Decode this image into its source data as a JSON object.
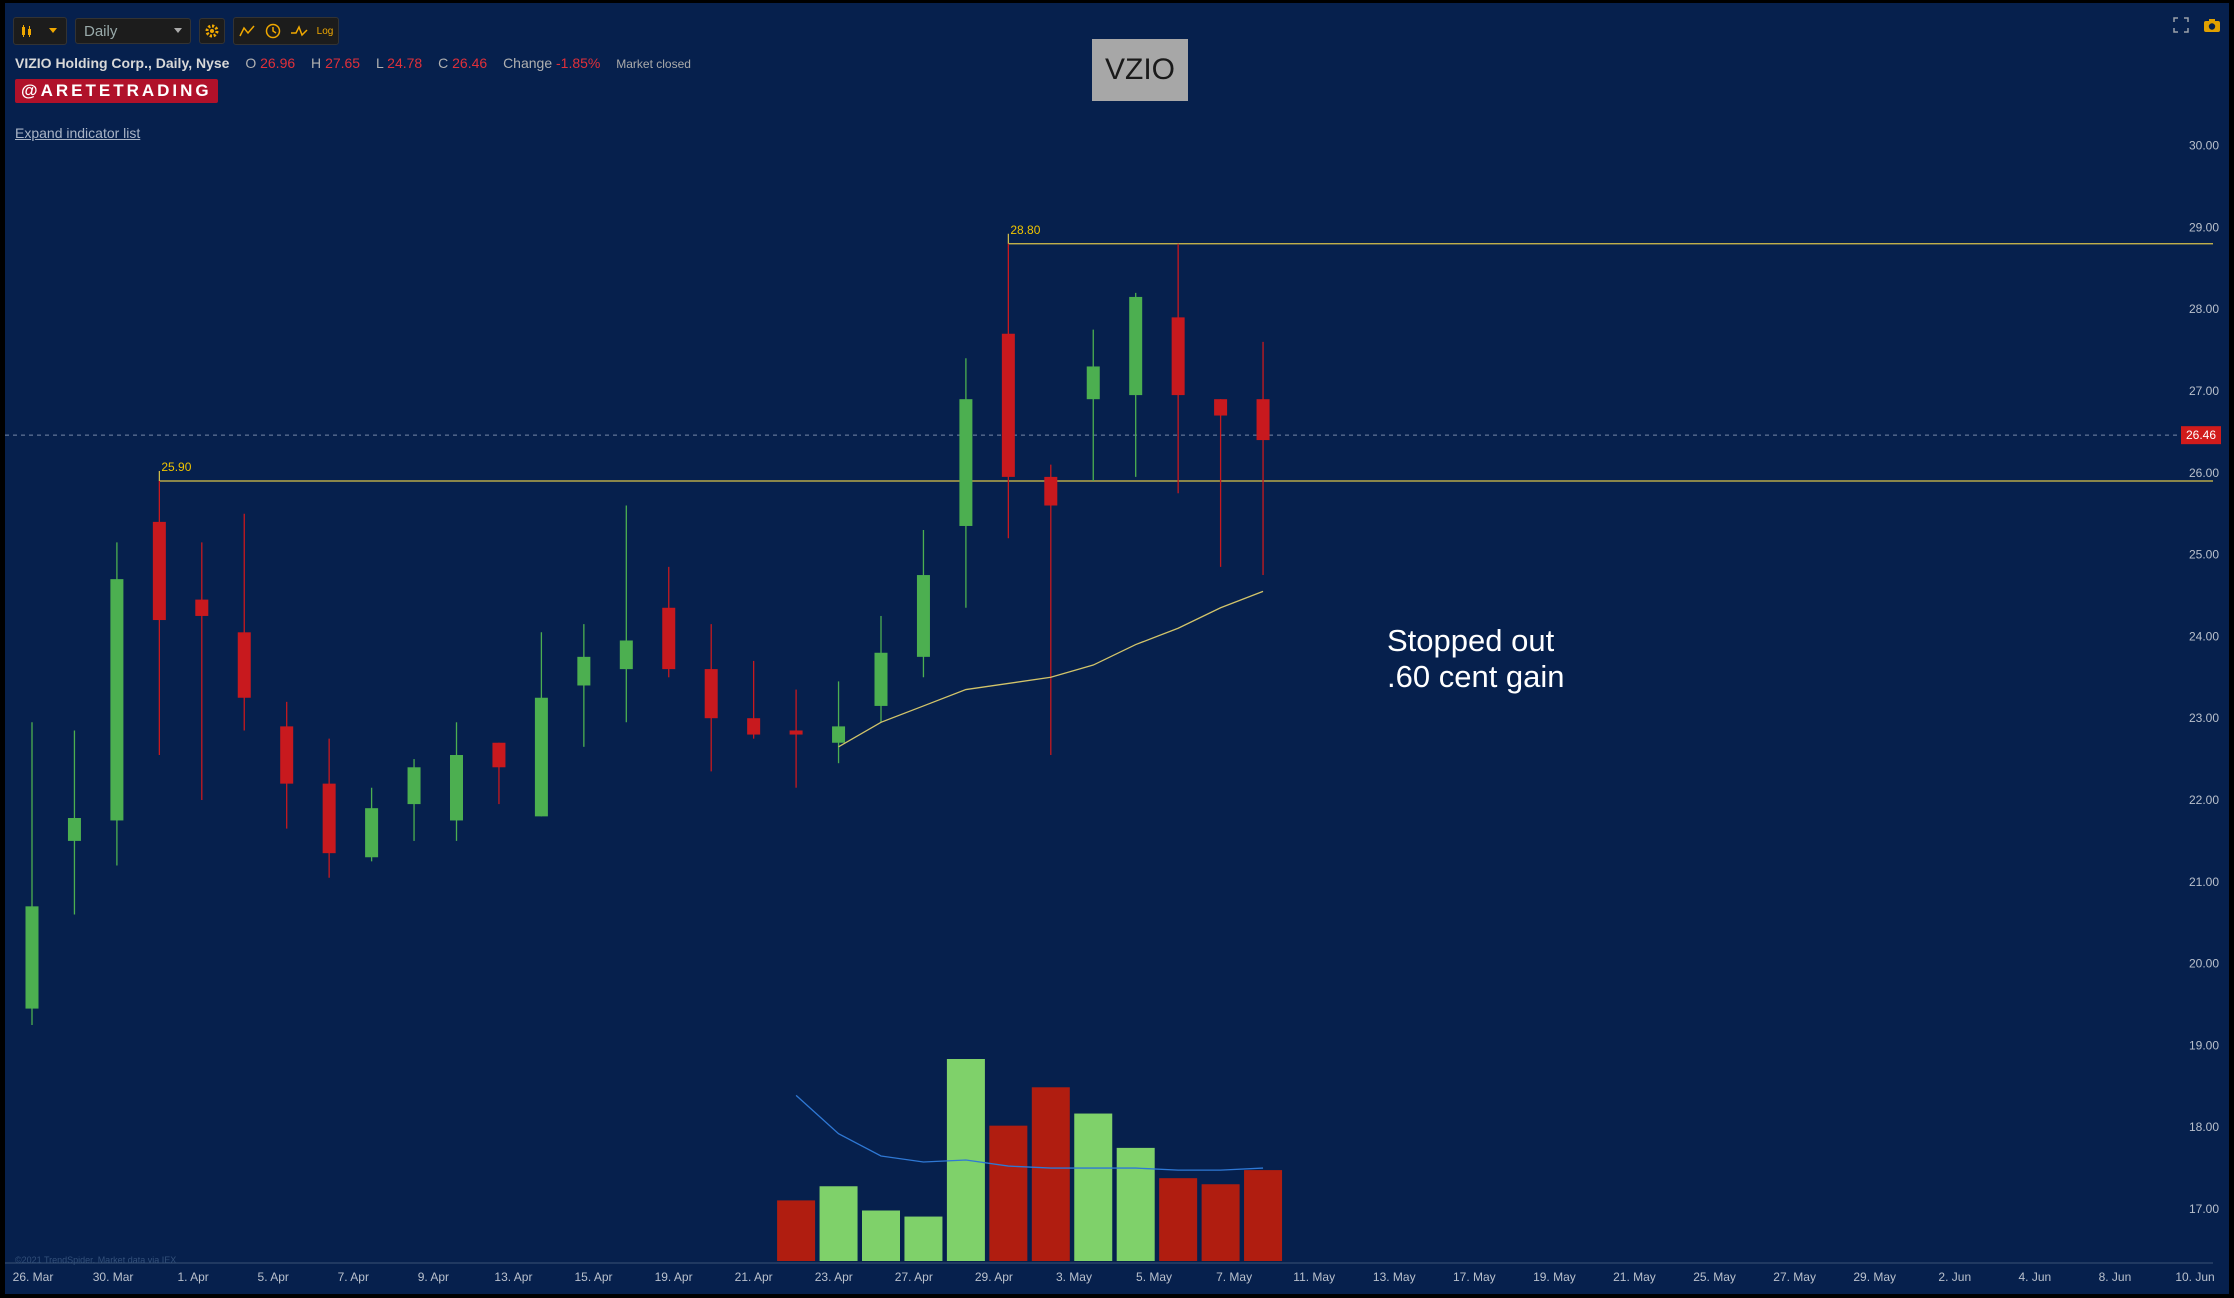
{
  "toolbar": {
    "chart_type_icon": "candlestick-icon",
    "interval_label": "Daily",
    "settings_icon": "gear-icon",
    "indicator_icon": "indicator-icon",
    "clock_icon": "clock-icon",
    "draw_icon": "drawing-tool-icon",
    "log_label": "Log",
    "fullscreen_icon": "fullscreen-icon",
    "camera_icon": "camera-icon"
  },
  "header": {
    "symbol_text": "VIZIO Holding Corp., Daily, Nyse",
    "open_label": "O",
    "open_value": "26.96",
    "high_label": "H",
    "high_value": "27.65",
    "low_label": "L",
    "low_value": "24.78",
    "close_label": "C",
    "close_value": "26.46",
    "change_label": "Change",
    "change_value": "-1.85%",
    "market_status": "Market closed",
    "brand": "@ARETETRADING",
    "expand_link": "Expand indicator list",
    "ticker_box": "VZIO"
  },
  "annotation": "Stopped out\n.60 cent gain",
  "watermark": "©2021 TrendSpider. Market data via IEX",
  "colors": {
    "background": "#06204d",
    "up": "#4caf50",
    "down": "#c8191e",
    "volume_up": "#7fd16a",
    "volume_down": "#b01d10",
    "level_line": "#d9c24a",
    "ma_line": "#d2c46a",
    "volume_ma": "#2f78d4",
    "last_price_tag": "#d11b1b"
  },
  "chart_data": {
    "type": "candlestick",
    "title": "VZIO",
    "ylim": [
      16.3,
      30.5
    ],
    "y_ticks": [
      "17.00",
      "18.00",
      "19.00",
      "20.00",
      "21.00",
      "22.00",
      "23.00",
      "24.00",
      "25.00",
      "26.00",
      "27.00",
      "28.00",
      "29.00",
      "30.00"
    ],
    "x_ticks": [
      "26. Mar",
      "30. Mar",
      "1. Apr",
      "5. Apr",
      "7. Apr",
      "9. Apr",
      "13. Apr",
      "15. Apr",
      "19. Apr",
      "21. Apr",
      "23. Apr",
      "27. Apr",
      "29. Apr",
      "3. May",
      "5. May",
      "7. May",
      "11. May",
      "13. May",
      "17. May",
      "19. May",
      "21. May",
      "25. May",
      "27. May",
      "29. May",
      "2. Jun",
      "4. Jun",
      "8. Jun",
      "10. Jun"
    ],
    "last_price": 26.46,
    "last_price_label": "26.46",
    "levels": [
      {
        "label": "28.80",
        "value": 28.8,
        "start_index": 23
      },
      {
        "label": "25.90",
        "value": 25.9,
        "start_index": 3
      }
    ],
    "candles": [
      {
        "o": 19.45,
        "h": 22.95,
        "l": 19.25,
        "c": 20.7
      },
      {
        "o": 21.5,
        "h": 22.85,
        "l": 20.6,
        "c": 21.78
      },
      {
        "o": 21.75,
        "h": 25.15,
        "l": 21.2,
        "c": 24.7
      },
      {
        "o": 25.4,
        "h": 25.9,
        "l": 22.55,
        "c": 24.2
      },
      {
        "o": 24.45,
        "h": 25.15,
        "l": 22.0,
        "c": 24.25
      },
      {
        "o": 24.05,
        "h": 25.5,
        "l": 22.85,
        "c": 23.25
      },
      {
        "o": 22.9,
        "h": 23.2,
        "l": 21.65,
        "c": 22.2
      },
      {
        "o": 22.2,
        "h": 22.75,
        "l": 21.05,
        "c": 21.35
      },
      {
        "o": 21.3,
        "h": 22.15,
        "l": 21.25,
        "c": 21.9
      },
      {
        "o": 21.95,
        "h": 22.5,
        "l": 21.5,
        "c": 22.4
      },
      {
        "o": 21.75,
        "h": 22.95,
        "l": 21.5,
        "c": 22.55
      },
      {
        "o": 22.7,
        "h": 22.7,
        "l": 21.95,
        "c": 22.4
      },
      {
        "o": 21.8,
        "h": 24.05,
        "l": 21.8,
        "c": 23.25
      },
      {
        "o": 23.4,
        "h": 24.15,
        "l": 22.65,
        "c": 23.75
      },
      {
        "o": 23.6,
        "h": 25.6,
        "l": 22.95,
        "c": 23.95
      },
      {
        "o": 24.35,
        "h": 24.85,
        "l": 23.5,
        "c": 23.6
      },
      {
        "o": 23.6,
        "h": 24.15,
        "l": 22.35,
        "c": 23.0
      },
      {
        "o": 23.0,
        "h": 23.7,
        "l": 22.75,
        "c": 22.8
      },
      {
        "o": 22.85,
        "h": 23.35,
        "l": 22.15,
        "c": 22.8
      },
      {
        "o": 22.7,
        "h": 23.45,
        "l": 22.45,
        "c": 22.9
      },
      {
        "o": 23.15,
        "h": 24.25,
        "l": 22.95,
        "c": 23.8
      },
      {
        "o": 23.75,
        "h": 25.3,
        "l": 23.5,
        "c": 24.75
      },
      {
        "o": 25.35,
        "h": 27.4,
        "l": 24.35,
        "c": 26.9
      },
      {
        "o": 27.7,
        "h": 28.8,
        "l": 25.2,
        "c": 25.95
      },
      {
        "o": 25.95,
        "h": 26.1,
        "l": 22.55,
        "c": 25.6
      },
      {
        "o": 26.9,
        "h": 27.75,
        "l": 25.9,
        "c": 27.3
      },
      {
        "o": 26.95,
        "h": 28.2,
        "l": 25.95,
        "c": 28.15
      },
      {
        "o": 27.9,
        "h": 28.8,
        "l": 25.75,
        "c": 26.95
      },
      {
        "o": 26.9,
        "h": 26.9,
        "l": 24.85,
        "c": 26.7
      },
      {
        "o": 26.9,
        "h": 27.6,
        "l": 24.75,
        "c": 26.4
      }
    ],
    "moving_average": [
      {
        "index": 19,
        "value": 22.65
      },
      {
        "index": 20,
        "value": 22.95
      },
      {
        "index": 21,
        "value": 23.15
      },
      {
        "index": 22,
        "value": 23.35
      },
      {
        "index": 24,
        "value": 23.5
      },
      {
        "index": 25,
        "value": 23.65
      },
      {
        "index": 26,
        "value": 23.9
      },
      {
        "index": 27,
        "value": 24.1
      },
      {
        "index": 28,
        "value": 24.35
      },
      {
        "index": 29,
        "value": 24.55
      }
    ],
    "volume": {
      "max": 1.0,
      "bars": [
        {
          "index": 18,
          "value": 0.3,
          "dir": "down"
        },
        {
          "index": 19,
          "value": 0.37,
          "dir": "up"
        },
        {
          "index": 20,
          "value": 0.25,
          "dir": "up"
        },
        {
          "index": 21,
          "value": 0.22,
          "dir": "up"
        },
        {
          "index": 22,
          "value": 1.0,
          "dir": "up"
        },
        {
          "index": 23,
          "value": 0.67,
          "dir": "down"
        },
        {
          "index": 24,
          "value": 0.86,
          "dir": "down"
        },
        {
          "index": 25,
          "value": 0.73,
          "dir": "up"
        },
        {
          "index": 26,
          "value": 0.56,
          "dir": "up"
        },
        {
          "index": 27,
          "value": 0.41,
          "dir": "down"
        },
        {
          "index": 28,
          "value": 0.38,
          "dir": "down"
        },
        {
          "index": 29,
          "value": 0.45,
          "dir": "down"
        }
      ],
      "moving_average": [
        {
          "index": 18,
          "value": 0.82
        },
        {
          "index": 19,
          "value": 0.63
        },
        {
          "index": 20,
          "value": 0.52
        },
        {
          "index": 21,
          "value": 0.49
        },
        {
          "index": 22,
          "value": 0.5
        },
        {
          "index": 23,
          "value": 0.47
        },
        {
          "index": 24,
          "value": 0.46
        },
        {
          "index": 25,
          "value": 0.46
        },
        {
          "index": 26,
          "value": 0.46
        },
        {
          "index": 27,
          "value": 0.45
        },
        {
          "index": 28,
          "value": 0.45
        },
        {
          "index": 29,
          "value": 0.46
        }
      ]
    }
  }
}
